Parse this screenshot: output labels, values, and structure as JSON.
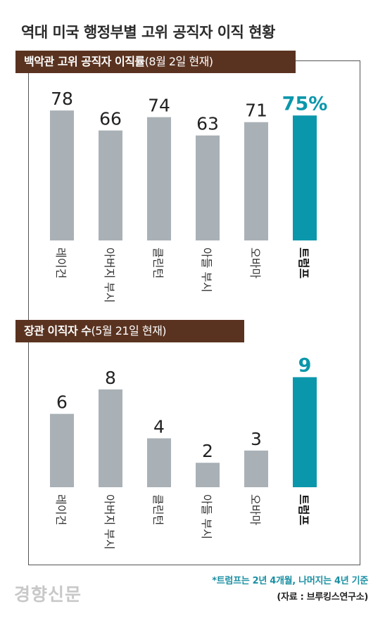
{
  "title": "역대 미국 행정부별 고위 공직자 이직 현황",
  "colors": {
    "bar": "#a9b1b6",
    "highlight": "#0b97ab",
    "header_bg": "#5a3320",
    "value": "#222222"
  },
  "chart_data": [
    {
      "type": "bar",
      "header": "백악관 고위 공직자 이직률",
      "header_note": "(8월 2일 현재)",
      "categories": [
        "레이건",
        "아버지 부시",
        "클린턴",
        "아들 부시",
        "오바마",
        "트럼프"
      ],
      "values": [
        78,
        66,
        74,
        63,
        71,
        75
      ],
      "labels": [
        "78",
        "66",
        "74",
        "63",
        "71",
        "75%"
      ],
      "highlight_index": 5,
      "ylim": [
        0,
        100
      ]
    },
    {
      "type": "bar",
      "header": "장관 이직자 수",
      "header_note": "(5월 21일 현재)",
      "categories": [
        "레이건",
        "아버지 부시",
        "클린턴",
        "아들 부시",
        "오바마",
        "트럼프"
      ],
      "values": [
        6,
        8,
        4,
        2,
        3,
        9
      ],
      "labels": [
        "6",
        "8",
        "4",
        "2",
        "3",
        "9"
      ],
      "highlight_index": 5,
      "ylim": [
        0,
        11.5
      ]
    }
  ],
  "footnote": "*트럼프는 2년 4개월, 나머지는 4년 기준",
  "source": "(자료 : 브루킹스연구소)",
  "brand": "경향신문"
}
